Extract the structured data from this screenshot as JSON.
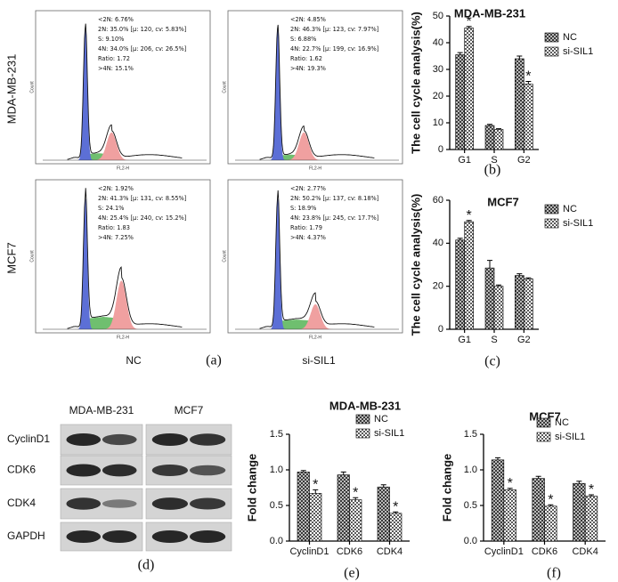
{
  "flow": {
    "row_labels": [
      "MDA-MB-231",
      "MCF7"
    ],
    "col_labels": [
      "NC",
      "si-SIL1"
    ],
    "panel_label": "(a)",
    "x_axis_label": "FL2-H",
    "y_axis_label": "Count",
    "panels": [
      {
        "lines": [
          "<2N: 6.76%",
          "2N: 35.0%  [μ: 120, cv: 5.83%]",
          "S: 9.10%",
          "4N: 34.0%  [μ: 206, cv: 26.5%]",
          "Ratio: 1.72",
          ">4N: 15.1%"
        ]
      },
      {
        "lines": [
          "<2N: 4.85%",
          "2N: 46.3%  [μ: 123, cv: 7.97%]",
          "S: 6.88%",
          "4N: 22.7%  [μ: 199, cv: 16.9%]",
          "Ratio: 1.62",
          ">4N: 19.3%"
        ]
      },
      {
        "lines": [
          "<2N: 1.92%",
          "2N: 41.3%  [μ: 131, cv: 8.55%]",
          "S: 24.1%",
          "4N: 25.4%  [μ: 240, cv: 15.2%]",
          "Ratio: 1.83",
          ">4N: 7.25%"
        ]
      },
      {
        "lines": [
          "<2N: 2.77%",
          "2N: 50.2%  [μ: 137, cv: 8.18%]",
          "S: 18.9%",
          "4N: 23.8%  [μ: 245, cv: 17.7%]",
          "Ratio: 1.79",
          ">4N: 4.37%"
        ]
      }
    ]
  },
  "blot": {
    "panel_label": "(d)",
    "columns": [
      "MDA-MB-231",
      "MCF7"
    ],
    "rows": [
      "CyclinD1",
      "CDK6",
      "CDK4",
      "GAPDH"
    ]
  },
  "chart_data": [
    {
      "type": "bar",
      "title": "MDA-MB-231",
      "ylabel": "The cell cycle analysis(%)",
      "panel_label": "(b)",
      "categories": [
        "G1",
        "S",
        "G2"
      ],
      "series": [
        {
          "name": "NC",
          "color": "#3a3a3a",
          "values": [
            35.5,
            9,
            34
          ],
          "errors": [
            0.8,
            0.4,
            1.0
          ]
        },
        {
          "name": "si-SIL1",
          "color": "#5a5a5a",
          "values": [
            45.5,
            7.5,
            24.5
          ],
          "errors": [
            0.6,
            0.3,
            1.0
          ]
        }
      ],
      "ylim": [
        0,
        50
      ],
      "yticks": [
        0,
        10,
        20,
        30,
        40,
        50
      ],
      "legend": "upper right",
      "annotations": [
        {
          "series": 1,
          "index": 0,
          "text": "*"
        },
        {
          "series": 1,
          "index": 2,
          "text": "*"
        }
      ]
    },
    {
      "type": "bar",
      "title": "MCF7",
      "ylabel": "The cell cycle analysis(%)",
      "panel_label": "(c)",
      "categories": [
        "G1",
        "S",
        "G2"
      ],
      "series": [
        {
          "name": "NC",
          "color": "#3a3a3a",
          "values": [
            41.5,
            28.5,
            25
          ],
          "errors": [
            0.8,
            3.5,
            0.8
          ]
        },
        {
          "name": "si-SIL1",
          "color": "#5a5a5a",
          "values": [
            50,
            20,
            23.5
          ],
          "errors": [
            0.6,
            0.6,
            0.4
          ]
        }
      ],
      "ylim": [
        0,
        60
      ],
      "yticks": [
        0,
        20,
        40,
        60
      ],
      "legend": "upper right",
      "annotations": [
        {
          "series": 1,
          "index": 0,
          "text": "*"
        }
      ]
    },
    {
      "type": "bar",
      "title": "MDA-MB-231",
      "ylabel": "Fold change",
      "panel_label": "(e)",
      "categories": [
        "CyclinD1",
        "CDK6",
        "CDK4"
      ],
      "series": [
        {
          "name": "NC",
          "color": "#3a3a3a",
          "values": [
            0.97,
            0.93,
            0.76
          ],
          "errors": [
            0.02,
            0.04,
            0.03
          ]
        },
        {
          "name": "si-SIL1",
          "color": "#5a5a5a",
          "values": [
            0.67,
            0.58,
            0.39
          ],
          "errors": [
            0.05,
            0.03,
            0.02
          ]
        }
      ],
      "ylim": [
        0,
        1.5
      ],
      "yticks": [
        {
          "value": 0,
          "label": "0.0"
        },
        0.5,
        {
          "value": 1,
          "label": "1.0"
        },
        1.5
      ],
      "legend": "upper right",
      "annotations": [
        {
          "series": 1,
          "index": 0,
          "text": "*"
        },
        {
          "series": 1,
          "index": 1,
          "text": "*"
        },
        {
          "series": 1,
          "index": 2,
          "text": "*"
        }
      ]
    },
    {
      "type": "bar",
      "title": "MCF7",
      "ylabel": "Fold change",
      "panel_label": "(f)",
      "categories": [
        "CyclinD1",
        "CDK6",
        "CDK4"
      ],
      "series": [
        {
          "name": "NC",
          "color": "#3a3a3a",
          "values": [
            1.14,
            0.88,
            0.81
          ],
          "errors": [
            0.03,
            0.03,
            0.03
          ]
        },
        {
          "name": "si-SIL1",
          "color": "#5a5a5a",
          "values": [
            0.72,
            0.49,
            0.63
          ],
          "errors": [
            0.02,
            0.02,
            0.02
          ]
        }
      ],
      "ylim": [
        0,
        1.5
      ],
      "yticks": [
        {
          "value": 0,
          "label": "0.0"
        },
        0.5,
        {
          "value": 1,
          "label": "1.0"
        },
        1.5
      ],
      "legend": "upper right",
      "annotations": [
        {
          "series": 1,
          "index": 0,
          "text": "*"
        },
        {
          "series": 1,
          "index": 1,
          "text": "*"
        },
        {
          "series": 1,
          "index": 2,
          "text": "*"
        }
      ]
    }
  ]
}
